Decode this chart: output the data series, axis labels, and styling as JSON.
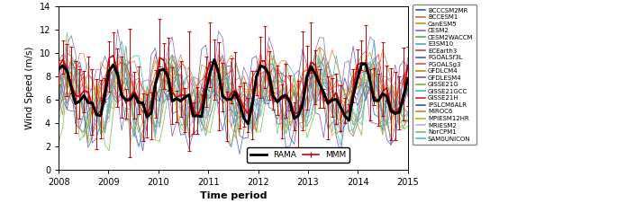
{
  "title": "",
  "xlabel": "Time period",
  "ylabel": "Wind Speed (m/s)",
  "ylim": [
    0,
    14
  ],
  "xlim": [
    2008.0,
    2015.0
  ],
  "yticks": [
    0,
    2,
    4,
    6,
    8,
    10,
    12,
    14
  ],
  "xticks": [
    2008,
    2009,
    2010,
    2011,
    2012,
    2013,
    2014,
    2015
  ],
  "legend_models": [
    "BCCCSM2MR",
    "BCCESM1",
    "CanESM5",
    "CESM2",
    "CESM2WACCM",
    "E3SM10",
    "ECEarth3",
    "FGOALSf3L",
    "FGOALSg3",
    "GFDLCM4",
    "GFDLESM4",
    "GISSE21G",
    "GISSE21GCC",
    "GISSE21H",
    "IPSLCM6ALR",
    "MIROC6",
    "MPIESM12HR",
    "MRIESM2",
    "NorCPM1",
    "SAM0UNICON"
  ],
  "legend_colors": [
    "#3355bb",
    "#dd6644",
    "#cc9900",
    "#8866bb",
    "#55aa55",
    "#44aacc",
    "#bb4444",
    "#5555bb",
    "#cc5555",
    "#bb8811",
    "#7755aa",
    "#77bb33",
    "#33bbbb",
    "#dd2222",
    "#3355aa",
    "#dd7733",
    "#ddaa00",
    "#bbaadd",
    "#77bb77",
    "#55bbcc"
  ],
  "n_points": 84,
  "seed": 7,
  "rama_color": "#000000",
  "mmm_color": "#cc0000",
  "background": "#ffffff"
}
